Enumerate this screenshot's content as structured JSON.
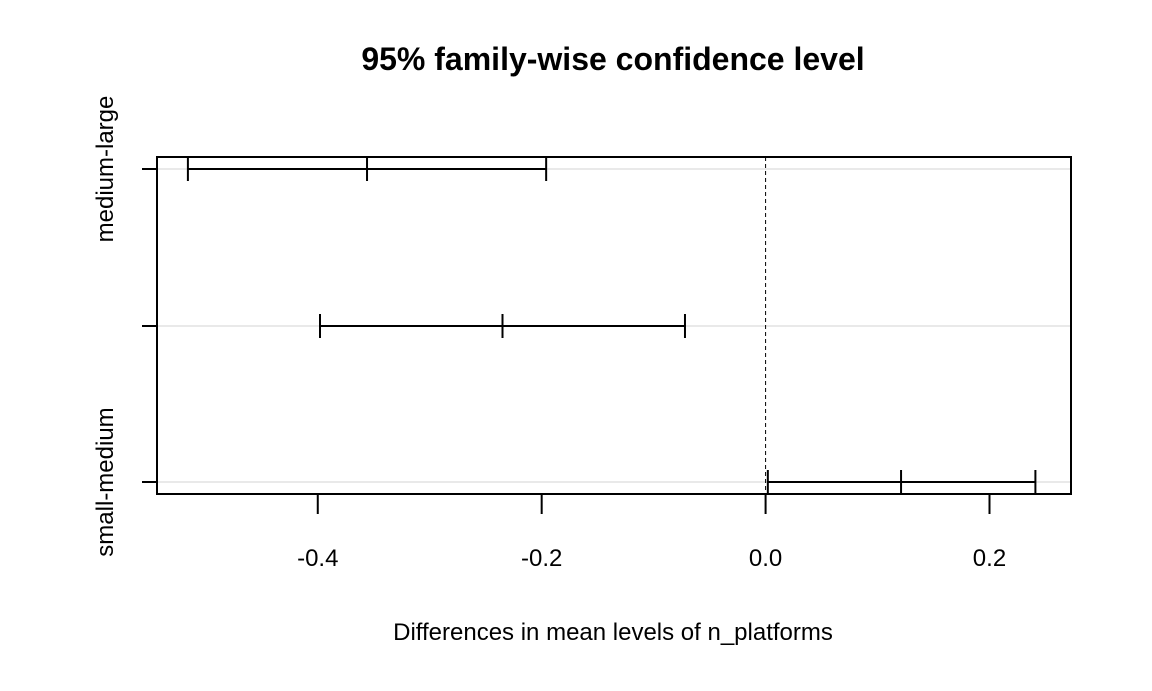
{
  "chart_data": {
    "type": "errorbar",
    "title": "95% family-wise confidence level",
    "xlabel": "Differences in mean levels of n_platforms",
    "ylabel": "",
    "xlim": [
      -0.5436,
      0.2728
    ],
    "x_ticks": [
      -0.4,
      -0.2,
      0.0,
      0.2
    ],
    "x_tick_labels": [
      "-0.4",
      "-0.2",
      "0.0",
      "0.2"
    ],
    "reference_line": 0.0,
    "grid": true,
    "comparisons": [
      {
        "label": "medium-large",
        "show_label": true,
        "lwr": -0.516,
        "diff": -0.356,
        "upr": -0.196
      },
      {
        "label": "",
        "show_label": false,
        "lwr": -0.398,
        "diff": -0.235,
        "upr": -0.072
      },
      {
        "label": "small-medium",
        "show_label": true,
        "lwr": 0.002,
        "diff": 0.121,
        "upr": 0.241
      }
    ]
  }
}
